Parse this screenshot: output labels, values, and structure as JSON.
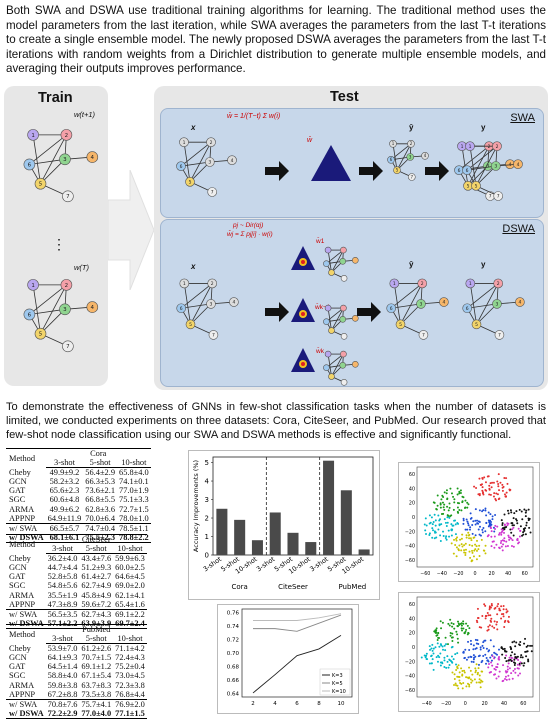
{
  "intro_text": "Both SWA and DSWA use traditional training algorithms for learning. The traditional method uses the model parameters from the last iteration, while SWA averages the parameters from the last T-t iterations to create a single ensemble model. The newly proposed DSWA averages the parameters from the last T-t iterations with random weights from a Dirichlet distribution to generate multiple ensemble models, and averaging their outputs improves performance.",
  "figure": {
    "train_title": "Train",
    "test_title": "Test",
    "swa_label": "SWA",
    "dswa_label": "DSWA",
    "w_top": "w(t+1)",
    "w_bottom": "w(T)",
    "dots": "⋮",
    "swa_formula": "w̄ = 1/(T−t) Σ w(i)",
    "dswa_formula_1": "pj ~ Dir(αj)",
    "dswa_formula_2": "w̄j = Σ pj[i] · w(i)",
    "x_label": "x",
    "y_hat_label": "ŷ",
    "y_label": "y",
    "w_bar_label": "w̄",
    "w1_label": "w̄1",
    "wk1_label": "w̄k−1",
    "wk_label": "w̄k"
  },
  "demo_text": "To demonstrate the effectiveness of GNNs in few-shot classification tasks when the number of datasets is limited, we conducted experiments on three datasets: Cora, CiteSeer, and PubMed. Our research proved that few-shot node classification using our SWA and DSWA methods is effective and significantly functional.",
  "tables": [
    {
      "dataset": "Cora",
      "method_header": "Method",
      "shots": [
        "3-shot",
        "5-shot",
        "10-shot"
      ],
      "rows": [
        [
          "Cheby",
          "49.9±9.2",
          "56.4±2.9",
          "65.8±4.0"
        ],
        [
          "GCN",
          "58.2±3.2",
          "66.3±5.3",
          "74.1±0.1"
        ],
        [
          "GAT",
          "65.6±2.3",
          "73.6±2.1",
          "77.0±1.9"
        ],
        [
          "SGC",
          "60.6±4.8",
          "66.8±5.5",
          "75.1±3.3"
        ],
        [
          "ARMA",
          "49.9±6.2",
          "62.8±3.6",
          "72.7±1.5"
        ],
        [
          "APPNP",
          "64.9±11.9",
          "70.0±6.4",
          "78.0±1.0"
        ]
      ],
      "swa": [
        "w/ SWA",
        "66.5±5.7",
        "74.7±0.4",
        "78.5±1.1"
      ],
      "dswa": [
        "w/ DSWA",
        "68.1±6.1",
        "75.5±2.3",
        "78.8±2.2"
      ]
    },
    {
      "dataset": "CiteSeer",
      "method_header": "Method",
      "shots": [
        "3-shot",
        "5-shot",
        "10-shot"
      ],
      "rows": [
        [
          "Cheby",
          "36.2±4.0",
          "43.4±7.6",
          "59.9±6.3"
        ],
        [
          "GCN",
          "44.7±4.4",
          "51.2±9.3",
          "60.0±2.5"
        ],
        [
          "GAT",
          "52.8±5.8",
          "61.4±2.7",
          "64.6±4.5"
        ],
        [
          "SGC",
          "54.8±5.6",
          "62.7±4.9",
          "69.0±2.0"
        ],
        [
          "ARMA",
          "35.5±1.9",
          "45.8±4.9",
          "62.1±4.1"
        ],
        [
          "APPNP",
          "47.3±8.9",
          "59.6±7.2",
          "65.4±1.6"
        ]
      ],
      "swa": [
        "w/ SWA",
        "56.5±3.5",
        "62.7±4.3",
        "69.1±2.2"
      ],
      "dswa": [
        "w/ DSWA",
        "57.1±2.2",
        "63.9±3.9",
        "69.7±2.4"
      ]
    },
    {
      "dataset": "PubMed",
      "method_header": "Method",
      "shots": [
        "3-shot",
        "5-shot",
        "10-shot"
      ],
      "rows": [
        [
          "Cheby",
          "53.9±7.0",
          "61.2±2.6",
          "71.1±4.2"
        ],
        [
          "GCN",
          "64.1±9.3",
          "70.7±1.5",
          "72.4±4.3"
        ],
        [
          "GAT",
          "64.5±1.4",
          "69.1±1.2",
          "75.2±0.4"
        ],
        [
          "SGC",
          "58.8±4.0",
          "67.1±5.4",
          "73.0±4.5"
        ],
        [
          "ARMA",
          "59.8±3.8",
          "63.7±8.3",
          "72.3±3.8"
        ],
        [
          "APPNP",
          "67.2±8.8",
          "73.5±3.8",
          "76.8±4.4"
        ]
      ],
      "swa": [
        "w/ SWA",
        "70.8±7.6",
        "75.7±4.1",
        "76.9±2.0"
      ],
      "dswa": [
        "w/ DSWA",
        "72.2±2.9",
        "77.0±4.0",
        "77.1±1.5"
      ]
    }
  ],
  "chart_data": [
    {
      "type": "bar",
      "ylabel": "Accuracy Improvements (%)",
      "categories": [
        "3-shot",
        "5-shot",
        "10-shot",
        "3-shot",
        "5-shot",
        "10-shot",
        "3-shot",
        "5-shot",
        "10-shot"
      ],
      "groups": [
        "Cora",
        "CiteSeer",
        "PubMed"
      ],
      "values": [
        2.5,
        1.9,
        0.8,
        2.3,
        1.2,
        0.7,
        5.1,
        3.5,
        0.3
      ],
      "ylim": [
        0,
        5.3
      ],
      "yticks": [
        0,
        1,
        2,
        3,
        4,
        5
      ],
      "bar_color": "#4a4a4a"
    },
    {
      "type": "line",
      "x": [
        2,
        4,
        6,
        8,
        10
      ],
      "xticks": [
        "2",
        "4",
        "6",
        "8",
        "10"
      ],
      "yticks": [
        "0.64",
        "0.66",
        "0.68",
        "0.70",
        "0.72",
        "0.74",
        "0.76"
      ],
      "ylim": [
        0.635,
        0.765
      ],
      "series": [
        {
          "name": "K=3",
          "values": [
            0.641,
            0.668,
            0.696,
            0.706,
            0.726
          ]
        },
        {
          "name": "K=5",
          "values": [
            0.736,
            0.736,
            0.732,
            0.744,
            0.756
          ]
        },
        {
          "name": "K=10",
          "values": [
            0.748,
            0.748,
            0.748,
            0.752,
            0.758
          ]
        }
      ]
    },
    {
      "type": "scatter",
      "xticks": [
        "−60",
        "−40",
        "−20",
        "0",
        "20",
        "40",
        "60"
      ],
      "yticks": [
        "60",
        "40",
        "20",
        "0",
        "−20",
        "−40",
        "−60"
      ],
      "palette": [
        "#e53030",
        "#1a9a1a",
        "#1f4fd6",
        "#00b8c8",
        "#d036d0",
        "#c9c400",
        "#111111"
      ]
    },
    {
      "type": "scatter",
      "xticks": [
        "−40",
        "−20",
        "0",
        "20",
        "40",
        "60"
      ],
      "yticks": [
        "60",
        "40",
        "20",
        "0",
        "−20",
        "−40",
        "−60"
      ],
      "palette": [
        "#e53030",
        "#1a9a1a",
        "#1f4fd6",
        "#00b8c8",
        "#d036d0",
        "#c9c400",
        "#111111"
      ]
    }
  ]
}
